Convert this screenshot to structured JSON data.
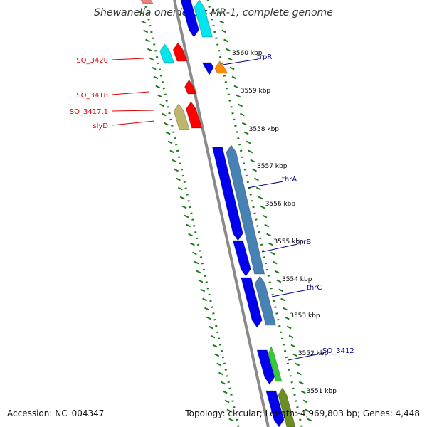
{
  "title": "Shewanella oneidensis MR-1, complete genome",
  "footer": {
    "accession": "Accession: NC_004347",
    "summary": "Topology: circular; Length: 4,969,803 bp; Genes: 4,448"
  },
  "colors": {
    "backbone": "#8a8a8a",
    "tick": "#1f7a1f",
    "left_label": "#dd0000",
    "right_label": "#00008b",
    "kbp_label": "#000000"
  },
  "kbp_ticks": [
    "3560 kbp",
    "3559 kbp",
    "3558 kbp",
    "3557 kbp",
    "3556 kbp",
    "3555 kbp",
    "3554 kbp",
    "3553 kbp",
    "3552 kbp",
    "3551 kbp"
  ],
  "left_labels": [
    "SO_3420",
    "SO_3418",
    "SO_3417.1",
    "slyD"
  ],
  "right_labels": [
    "trpR",
    "thrA",
    "thrB",
    "thrC",
    "SO_3412"
  ],
  "feature_colors": [
    "#ff0000",
    "#00e5ee",
    "#bdb76b",
    "#0000ee",
    "#ff8c00",
    "#4682b4",
    "#32cd32",
    "#6b8e23",
    "#f08080"
  ]
}
